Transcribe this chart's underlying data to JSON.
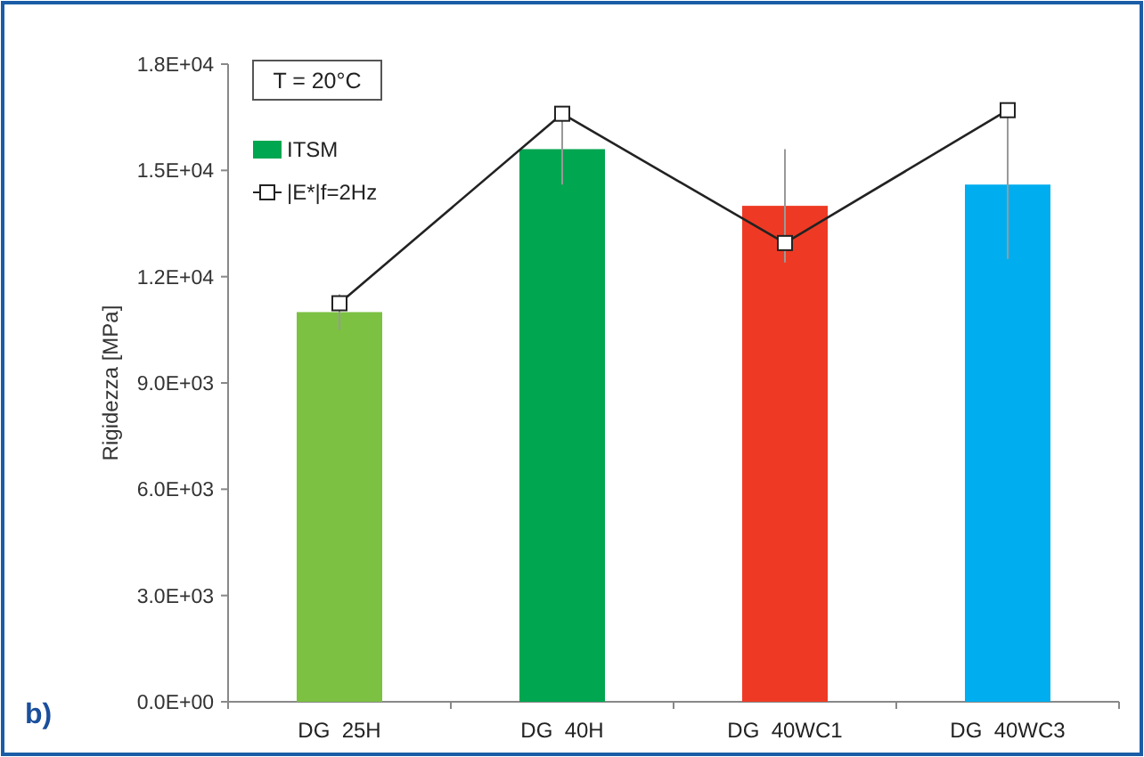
{
  "chart_data": {
    "type": "bar",
    "ylabel": "Rigidezza [MPa]",
    "categories": [
      "DG  25H",
      "DG  40H",
      "DG  40WC1",
      "DG  40WC3"
    ],
    "series": [
      {
        "name": "ITSM",
        "color": "#00a650",
        "colors": [
          "#7cc142",
          "#00a650",
          "#ee3a24",
          "#00aeef"
        ],
        "values": [
          11000,
          15600,
          14000,
          14600
        ],
        "errors": [
          500,
          1000,
          1600,
          2100
        ]
      },
      {
        "name": "|E*|f=2Hz",
        "type": "line",
        "color": "#222222",
        "values": [
          11250,
          16600,
          12950,
          16700
        ],
        "marker": "square"
      }
    ],
    "ylim": [
      0,
      18000
    ],
    "yticks": [
      {
        "value": 0,
        "label": "0.0E+00"
      },
      {
        "value": 3000,
        "label": "3.0E+03"
      },
      {
        "value": 6000,
        "label": "6.0E+03"
      },
      {
        "value": 9000,
        "label": "9.0E+03"
      },
      {
        "value": 12000,
        "label": "1.2E+04"
      },
      {
        "value": 15000,
        "label": "1.5E+04"
      },
      {
        "value": 18000,
        "label": "1.8E+04"
      }
    ],
    "grid": false,
    "legend": "top left",
    "annotations": [
      "T = 20°C",
      "b)"
    ]
  }
}
